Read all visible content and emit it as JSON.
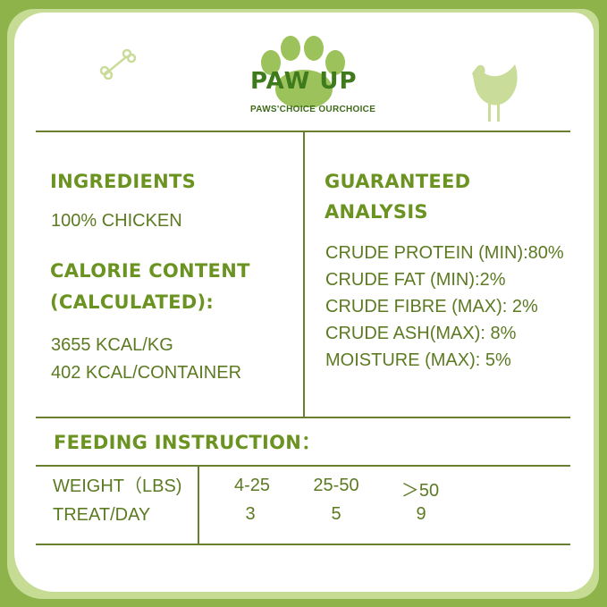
{
  "brand": {
    "name": "PAW UP",
    "slogan": "PAWS'CHOICE  OURCHOICE",
    "icons": [
      "bone-icon",
      "paw-icon",
      "chicken-icon"
    ]
  },
  "colors": {
    "background": "#8fb34b",
    "heading": "#6b9322",
    "text": "#5c7a22",
    "line": "#6a7f2e"
  },
  "ingredients": {
    "title": "INGREDIENTS",
    "value": "100% CHICKEN"
  },
  "calorie": {
    "title_line1": "CALORIE CONTENT",
    "title_line2": "(CALCULATED):",
    "values": [
      "3655 KCAL/KG",
      "402 KCAL/CONTAINER"
    ]
  },
  "analysis": {
    "title_line1": "GUARANTEED",
    "title_line2": "ANALYSIS",
    "items": [
      "CRUDE PROTEIN (MIN):80%",
      "CRUDE FAT (MIN):2%",
      "CRUDE FIBRE (MAX): 2%",
      "CRUDE ASH(MAX): 8%",
      "MOISTURE (MAX): 5%"
    ]
  },
  "feeding": {
    "title": "FEEDING INSTRUCTION：",
    "rows": [
      {
        "label": "WEIGHT（LBS)",
        "values": [
          "4-25",
          "25-50",
          "＞50"
        ]
      },
      {
        "label": "TREAT/DAY",
        "values": [
          "3",
          "5",
          "9"
        ]
      }
    ]
  }
}
